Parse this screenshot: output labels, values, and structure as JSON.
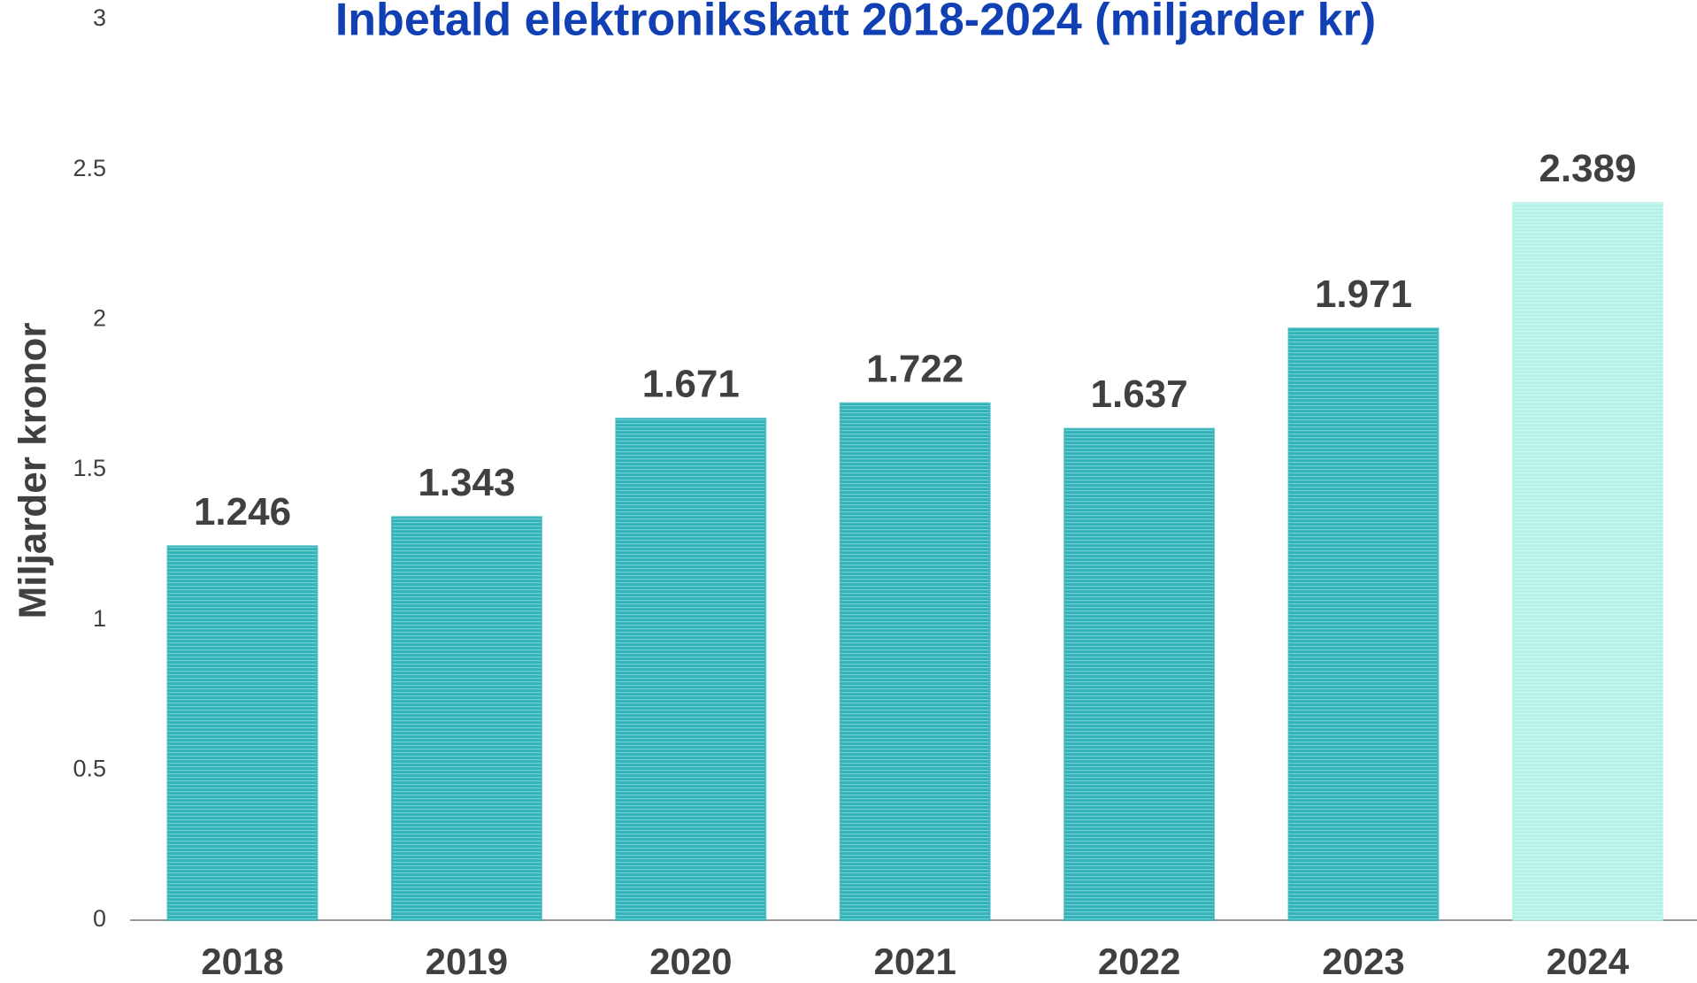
{
  "chart_data": {
    "type": "bar",
    "title": "Inbetald elektronikskatt 2018-2024 (miljarder kr)",
    "y_label": "Miljarder kronor",
    "categories": [
      "2018",
      "2019",
      "2020",
      "2021",
      "2022",
      "2023",
      "2024"
    ],
    "values": [
      1.246,
      1.343,
      1.671,
      1.722,
      1.637,
      1.971,
      2.389
    ],
    "colors": [
      "#2fb2b8",
      "#2fb2b8",
      "#2fb2b8",
      "#2fb2b8",
      "#2fb2b8",
      "#2fb2b8",
      "#b2f2e6"
    ],
    "ylim": [
      0,
      3
    ],
    "yticks": [
      0,
      0.5,
      1,
      1.5,
      2,
      2.5,
      3
    ],
    "grid": false
  }
}
